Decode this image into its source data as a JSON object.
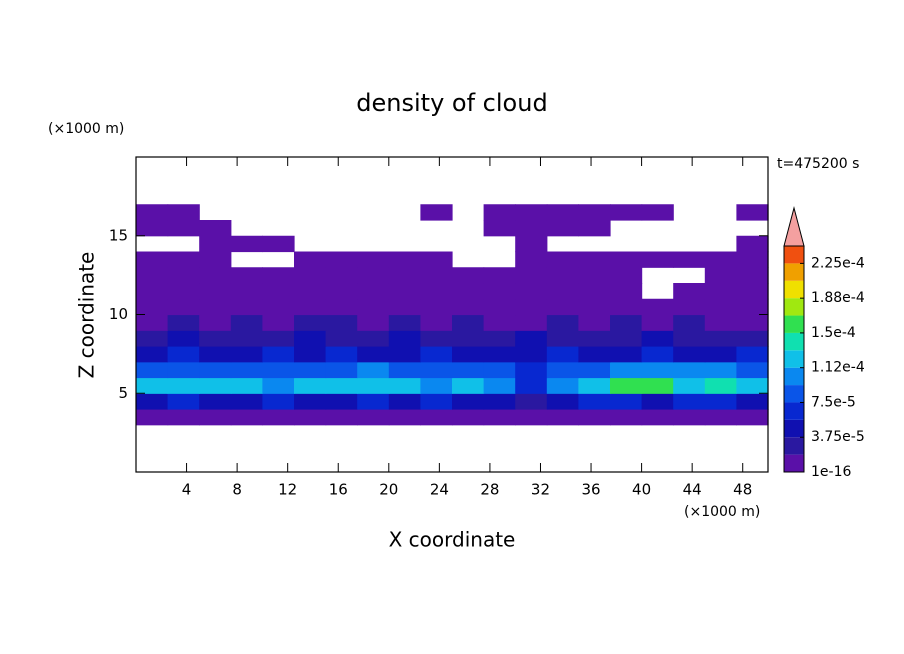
{
  "chart_data": {
    "type": "contour",
    "title": "density of cloud",
    "time_label": "t=475200 s",
    "x_label": "X coordinate",
    "y_label": "Z coordinate",
    "x_unit": "(×1000 m)",
    "y_unit": "(×1000 m)",
    "xlim": [
      0,
      50
    ],
    "ylim": [
      0,
      20
    ],
    "xticks": [
      4,
      8,
      12,
      16,
      20,
      24,
      28,
      32,
      36,
      40,
      44,
      48
    ],
    "yticks": [
      5,
      10,
      15
    ],
    "levels": [
      1e-16,
      1.875e-05,
      3.75e-05,
      5.625e-05,
      7.5e-05,
      9.375e-05,
      0.0001125,
      0.00013125,
      0.00015,
      0.00016875,
      0.0001875,
      0.00020625,
      0.000225,
      0.00024375
    ],
    "colors": [
      "#5a10a8",
      "#2a18a0",
      "#1010b0",
      "#0828d0",
      "#0a55e8",
      "#0a88f0",
      "#10c0e8",
      "#10e0b0",
      "#30e050",
      "#a0e810",
      "#f0e000",
      "#f0a000",
      "#f05010"
    ],
    "overflow_color": "#f4a0a0",
    "colorbar_ticks": [
      {
        "value": 1e-16,
        "label": "1e-16"
      },
      {
        "value": 3.75e-05,
        "label": "3.75e-5"
      },
      {
        "value": 7.5e-05,
        "label": "7.5e-5"
      },
      {
        "value": 0.0001125,
        "label": "1.12e-4"
      },
      {
        "value": 0.00015,
        "label": "1.5e-4"
      },
      {
        "value": 0.0001875,
        "label": "1.88e-4"
      },
      {
        "value": 0.000225,
        "label": "2.25e-4"
      }
    ],
    "x": [
      1.25,
      3.75,
      6.25,
      8.75,
      11.25,
      13.75,
      16.25,
      18.75,
      21.25,
      23.75,
      26.25,
      28.75,
      31.25,
      33.75,
      36.25,
      38.75,
      41.25,
      43.75,
      46.25,
      48.75
    ],
    "z": [
      3.5,
      4.5,
      5.5,
      6.5,
      7.5,
      8.5,
      9.5,
      10.5,
      11.5,
      12.5,
      13.5,
      14.5,
      15.5,
      16.5
    ],
    "values": [
      [
        1e-05,
        1e-05,
        1e-05,
        1e-05,
        1e-05,
        1e-05,
        1e-05,
        1e-05,
        1e-05,
        1e-05,
        1e-05,
        1e-05,
        1e-05,
        1e-05,
        1e-05,
        1e-05,
        1e-05,
        1e-05,
        1e-05,
        1e-05
      ],
      [
        4e-05,
        6e-05,
        4e-05,
        4e-05,
        6e-05,
        4e-05,
        4e-05,
        6e-05,
        4e-05,
        6e-05,
        4e-05,
        4e-05,
        3e-05,
        4e-05,
        6e-05,
        6e-05,
        4e-05,
        6e-05,
        6e-05,
        4e-05
      ],
      [
        0.000115,
        0.000115,
        0.00013,
        0.00013,
        0.0001,
        0.000115,
        0.000115,
        0.00012,
        0.000115,
        0.00011,
        0.000115,
        0.00011,
        7e-05,
        0.0001,
        0.000115,
        0.00016,
        0.00016,
        0.00012,
        0.00014,
        0.000115
      ],
      [
        8e-05,
        8e-05,
        8e-05,
        8e-05,
        8e-05,
        8e-05,
        8.5e-05,
        9.5e-05,
        8e-05,
        8e-05,
        8e-05,
        8e-05,
        6e-05,
        8e-05,
        8e-05,
        0.0001,
        0.0001,
        0.0001,
        0.0001,
        8e-05
      ],
      [
        5e-05,
        6e-05,
        5e-05,
        5e-05,
        6e-05,
        5e-05,
        6e-05,
        5e-05,
        5e-05,
        6e-05,
        5e-05,
        5e-05,
        5e-05,
        6e-05,
        5e-05,
        5e-05,
        6e-05,
        5e-05,
        5e-05,
        6e-05
      ],
      [
        3e-05,
        4e-05,
        3e-05,
        3e-05,
        3e-05,
        4e-05,
        3e-05,
        3e-05,
        4e-05,
        3e-05,
        3e-05,
        3e-05,
        4e-05,
        3e-05,
        3e-05,
        3e-05,
        4e-05,
        3e-05,
        3e-05,
        3e-05
      ],
      [
        1.5e-05,
        2.5e-05,
        1.5e-05,
        2.5e-05,
        1.5e-05,
        2.5e-05,
        2.5e-05,
        1.5e-05,
        2.5e-05,
        1.5e-05,
        2.5e-05,
        1.5e-05,
        1.5e-05,
        2.5e-05,
        1.5e-05,
        2.5e-05,
        1.5e-05,
        2.5e-05,
        1.5e-05,
        1.5e-05
      ],
      [
        1e-05,
        1e-05,
        1e-05,
        1e-05,
        1e-05,
        1e-05,
        1e-05,
        1e-05,
        1e-05,
        1e-05,
        1e-05,
        1e-05,
        1e-05,
        1e-05,
        1e-05,
        1e-05,
        1e-05,
        1e-05,
        1e-05,
        1e-05
      ],
      [
        1e-05,
        1e-05,
        1e-05,
        1e-05,
        1e-05,
        1e-05,
        1e-05,
        1e-05,
        1e-05,
        1e-05,
        1e-05,
        1e-05,
        1e-05,
        1e-05,
        1e-05,
        1e-05,
        null,
        1e-05,
        1e-05,
        1e-05
      ],
      [
        1e-05,
        1e-05,
        1e-05,
        1e-05,
        1e-05,
        1e-05,
        1e-05,
        1e-05,
        1e-05,
        1e-05,
        1e-05,
        1e-05,
        1e-05,
        1e-05,
        1e-05,
        1e-05,
        null,
        null,
        1e-05,
        1e-05
      ],
      [
        1e-05,
        1e-05,
        1e-05,
        null,
        null,
        1e-05,
        1e-05,
        1e-05,
        1e-05,
        1e-05,
        null,
        null,
        1e-05,
        1e-05,
        1e-05,
        1e-05,
        1e-05,
        1e-05,
        1e-05,
        1e-05
      ],
      [
        null,
        null,
        1e-05,
        1e-05,
        1e-05,
        null,
        null,
        null,
        null,
        null,
        null,
        null,
        1e-05,
        null,
        null,
        null,
        null,
        null,
        null,
        1e-05
      ],
      [
        1e-05,
        1e-05,
        1e-05,
        null,
        null,
        null,
        null,
        null,
        null,
        null,
        null,
        1e-05,
        1e-05,
        1e-05,
        1e-05,
        null,
        null,
        null,
        null,
        null
      ],
      [
        1e-05,
        1e-05,
        null,
        null,
        null,
        null,
        null,
        null,
        null,
        1e-05,
        null,
        1e-05,
        1e-05,
        1e-05,
        1e-05,
        1e-05,
        1e-05,
        null,
        null,
        1e-05
      ]
    ]
  }
}
